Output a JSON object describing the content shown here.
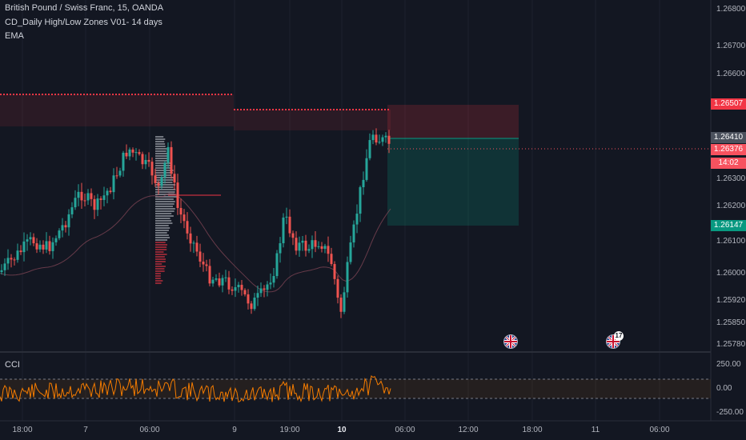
{
  "legend": {
    "symbol": "British Pound / Swiss Franc, 15, OANDA",
    "indicator1": "CD_Daily High/Low Zones V01- 14 days",
    "indicator2": "EMA"
  },
  "cci_panel": {
    "label": "CCI"
  },
  "price_axis": [
    "1.26800",
    "1.26700",
    "1.26600",
    "1.26300",
    "1.26200",
    "1.26100",
    "1.26000",
    "1.25920",
    "1.25850",
    "1.25780"
  ],
  "price_tags": {
    "zone_high": {
      "value": "1.26507",
      "color": "#f23645"
    },
    "last_gray": {
      "value": "1.26410",
      "color": "#4c525e"
    },
    "current": {
      "value": "1.26376",
      "color": "#f7525f"
    },
    "countdown": {
      "value": "14:02",
      "color": "#f7525f"
    },
    "zone_low": {
      "value": "1.26147",
      "color": "#089981"
    }
  },
  "cci_axis": [
    "250.00",
    "0.00",
    "-250.00"
  ],
  "time_axis": [
    {
      "label": "18:00",
      "bold": false
    },
    {
      "label": "7",
      "bold": false
    },
    {
      "label": "06:00",
      "bold": false
    },
    {
      "label": "9",
      "bold": false
    },
    {
      "label": "19:00",
      "bold": false
    },
    {
      "label": "10",
      "bold": true
    },
    {
      "label": "06:00",
      "bold": false
    },
    {
      "label": "12:00",
      "bold": false
    },
    {
      "label": "18:00",
      "bold": false
    },
    {
      "label": "11",
      "bold": false
    },
    {
      "label": "06:00",
      "bold": false
    }
  ],
  "event_badge": "17",
  "colors": {
    "background": "#131722",
    "up_candle": "#26a69a",
    "down_candle": "#ef5350",
    "zone_red": "#f23645",
    "zone_green": "#089981",
    "cci_line": "#f57c00"
  }
}
